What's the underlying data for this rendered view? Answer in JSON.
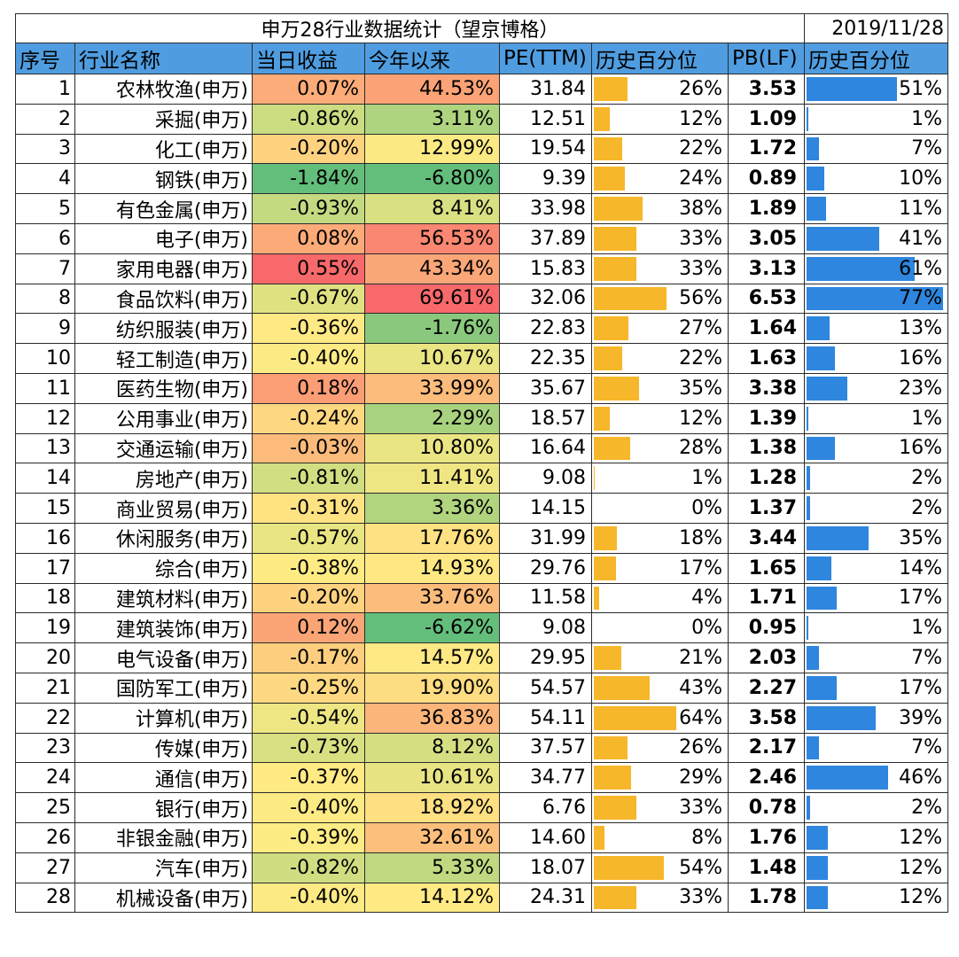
{
  "title": "申万28行业数据统计（望京博格）",
  "date": "2019/11/28",
  "headers": [
    "序号",
    "行业名称",
    "当日收益",
    "今年以来",
    "PE(TTM)",
    "历史百分位",
    "PB(LF)",
    "历史百分位"
  ],
  "colors": {
    "header_bg": "#4f9de0",
    "pe_bar": "#f7b72a",
    "pb_bar": "#2e86de"
  },
  "rows": [
    {
      "idx": "1",
      "name": "农林牧渔(申万)",
      "daily": "0.07%",
      "ytd": "44.53%",
      "pe": "31.84",
      "pe_pct": "26%",
      "pb": "3.53",
      "pb_pct": "51%"
    },
    {
      "idx": "2",
      "name": "采掘(申万)",
      "daily": "-0.86%",
      "ytd": "3.11%",
      "pe": "12.51",
      "pe_pct": "12%",
      "pb": "1.09",
      "pb_pct": "1%"
    },
    {
      "idx": "3",
      "name": "化工(申万)",
      "daily": "-0.20%",
      "ytd": "12.99%",
      "pe": "19.54",
      "pe_pct": "22%",
      "pb": "1.72",
      "pb_pct": "7%"
    },
    {
      "idx": "4",
      "name": "钢铁(申万)",
      "daily": "-1.84%",
      "ytd": "-6.80%",
      "pe": "9.39",
      "pe_pct": "24%",
      "pb": "0.89",
      "pb_pct": "10%"
    },
    {
      "idx": "5",
      "name": "有色金属(申万)",
      "daily": "-0.93%",
      "ytd": "8.41%",
      "pe": "33.98",
      "pe_pct": "38%",
      "pb": "1.89",
      "pb_pct": "11%"
    },
    {
      "idx": "6",
      "name": "电子(申万)",
      "daily": "0.08%",
      "ytd": "56.53%",
      "pe": "37.89",
      "pe_pct": "33%",
      "pb": "3.05",
      "pb_pct": "41%"
    },
    {
      "idx": "7",
      "name": "家用电器(申万)",
      "daily": "0.55%",
      "ytd": "43.34%",
      "pe": "15.83",
      "pe_pct": "33%",
      "pb": "3.13",
      "pb_pct": "61%"
    },
    {
      "idx": "8",
      "name": "食品饮料(申万)",
      "daily": "-0.67%",
      "ytd": "69.61%",
      "pe": "32.06",
      "pe_pct": "56%",
      "pb": "6.53",
      "pb_pct": "77%"
    },
    {
      "idx": "9",
      "name": "纺织服装(申万)",
      "daily": "-0.36%",
      "ytd": "-1.76%",
      "pe": "22.83",
      "pe_pct": "27%",
      "pb": "1.64",
      "pb_pct": "13%"
    },
    {
      "idx": "10",
      "name": "轻工制造(申万)",
      "daily": "-0.40%",
      "ytd": "10.67%",
      "pe": "22.35",
      "pe_pct": "22%",
      "pb": "1.63",
      "pb_pct": "16%"
    },
    {
      "idx": "11",
      "name": "医药生物(申万)",
      "daily": "0.18%",
      "ytd": "33.99%",
      "pe": "35.67",
      "pe_pct": "35%",
      "pb": "3.38",
      "pb_pct": "23%"
    },
    {
      "idx": "12",
      "name": "公用事业(申万)",
      "daily": "-0.24%",
      "ytd": "2.29%",
      "pe": "18.57",
      "pe_pct": "12%",
      "pb": "1.39",
      "pb_pct": "1%"
    },
    {
      "idx": "13",
      "name": "交通运输(申万)",
      "daily": "-0.03%",
      "ytd": "10.80%",
      "pe": "16.64",
      "pe_pct": "28%",
      "pb": "1.38",
      "pb_pct": "16%"
    },
    {
      "idx": "14",
      "name": "房地产(申万)",
      "daily": "-0.81%",
      "ytd": "11.41%",
      "pe": "9.08",
      "pe_pct": "1%",
      "pb": "1.28",
      "pb_pct": "2%"
    },
    {
      "idx": "15",
      "name": "商业贸易(申万)",
      "daily": "-0.31%",
      "ytd": "3.36%",
      "pe": "14.15",
      "pe_pct": "0%",
      "pb": "1.37",
      "pb_pct": "2%"
    },
    {
      "idx": "16",
      "name": "休闲服务(申万)",
      "daily": "-0.57%",
      "ytd": "17.76%",
      "pe": "31.99",
      "pe_pct": "18%",
      "pb": "3.44",
      "pb_pct": "35%"
    },
    {
      "idx": "17",
      "name": "综合(申万)",
      "daily": "-0.38%",
      "ytd": "14.93%",
      "pe": "29.76",
      "pe_pct": "17%",
      "pb": "1.65",
      "pb_pct": "14%"
    },
    {
      "idx": "18",
      "name": "建筑材料(申万)",
      "daily": "-0.20%",
      "ytd": "33.76%",
      "pe": "11.58",
      "pe_pct": "4%",
      "pb": "1.71",
      "pb_pct": "17%"
    },
    {
      "idx": "19",
      "name": "建筑装饰(申万)",
      "daily": "0.12%",
      "ytd": "-6.62%",
      "pe": "9.08",
      "pe_pct": "0%",
      "pb": "0.95",
      "pb_pct": "1%"
    },
    {
      "idx": "20",
      "name": "电气设备(申万)",
      "daily": "-0.17%",
      "ytd": "14.57%",
      "pe": "29.95",
      "pe_pct": "21%",
      "pb": "2.03",
      "pb_pct": "7%"
    },
    {
      "idx": "21",
      "name": "国防军工(申万)",
      "daily": "-0.25%",
      "ytd": "19.90%",
      "pe": "54.57",
      "pe_pct": "43%",
      "pb": "2.27",
      "pb_pct": "17%"
    },
    {
      "idx": "22",
      "name": "计算机(申万)",
      "daily": "-0.54%",
      "ytd": "36.83%",
      "pe": "54.11",
      "pe_pct": "64%",
      "pb": "3.58",
      "pb_pct": "39%"
    },
    {
      "idx": "23",
      "name": "传媒(申万)",
      "daily": "-0.73%",
      "ytd": "8.12%",
      "pe": "37.57",
      "pe_pct": "26%",
      "pb": "2.17",
      "pb_pct": "7%"
    },
    {
      "idx": "24",
      "name": "通信(申万)",
      "daily": "-0.37%",
      "ytd": "10.61%",
      "pe": "34.77",
      "pe_pct": "29%",
      "pb": "2.46",
      "pb_pct": "46%"
    },
    {
      "idx": "25",
      "name": "银行(申万)",
      "daily": "-0.40%",
      "ytd": "18.92%",
      "pe": "6.76",
      "pe_pct": "33%",
      "pb": "0.78",
      "pb_pct": "2%"
    },
    {
      "idx": "26",
      "name": "非银金融(申万)",
      "daily": "-0.39%",
      "ytd": "32.61%",
      "pe": "14.60",
      "pe_pct": "8%",
      "pb": "1.76",
      "pb_pct": "12%"
    },
    {
      "idx": "27",
      "name": "汽车(申万)",
      "daily": "-0.82%",
      "ytd": "5.33%",
      "pe": "18.07",
      "pe_pct": "54%",
      "pb": "1.48",
      "pb_pct": "12%"
    },
    {
      "idx": "28",
      "name": "机械设备(申万)",
      "daily": "-0.40%",
      "ytd": "14.12%",
      "pe": "24.31",
      "pe_pct": "33%",
      "pb": "1.78",
      "pb_pct": "12%"
    }
  ]
}
